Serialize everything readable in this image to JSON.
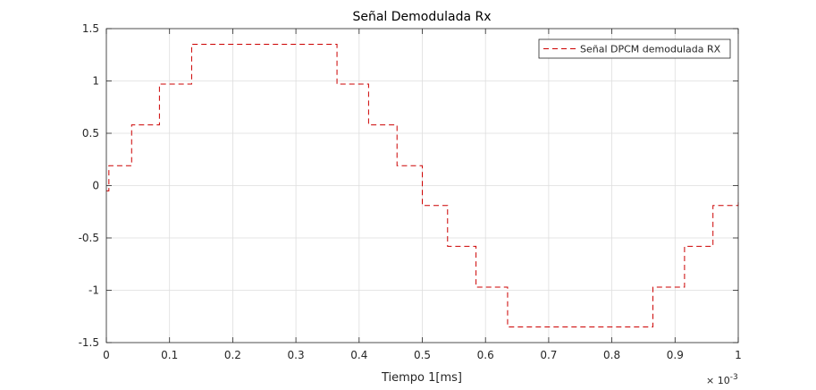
{
  "chart_data": {
    "type": "line",
    "title": "Señal Demodulada Rx",
    "xlabel": "Tiempo 1[ms]",
    "ylabel": "",
    "xlim": [
      0,
      0.001
    ],
    "ylim": [
      -1.5,
      1.5
    ],
    "x_exponent_label": "× 10",
    "x_exponent_power": "-3",
    "x_tick_labels": [
      "0",
      "0.1",
      "0.2",
      "0.3",
      "0.4",
      "0.5",
      "0.6",
      "0.7",
      "0.8",
      "0.9",
      "1"
    ],
    "y_tick_labels": [
      "1.5",
      "1",
      "0.5",
      "0",
      "-0.5",
      "-1",
      "-1.5"
    ],
    "x_ticks": [
      0,
      0.0001,
      0.0002,
      0.0003,
      0.0004,
      0.0005,
      0.0006,
      0.0007,
      0.0008,
      0.0009,
      0.001
    ],
    "y_ticks": [
      1.5,
      1,
      0.5,
      0,
      -0.5,
      -1,
      -1.5
    ],
    "grid": true,
    "legend_position": "top-right",
    "series": [
      {
        "name": "Señal DPCM demodulada RX",
        "color": "#cc0000",
        "line_style": "dashed",
        "step": "post",
        "x": [
          0,
          4e-06,
          4e-05,
          8.4e-05,
          0.000135,
          0.000365,
          0.000415,
          0.00046,
          0.0005,
          0.00054,
          0.000585,
          0.000635,
          0.000865,
          0.000915,
          0.00096,
          0.001
        ],
        "y": [
          -0.05,
          0.19,
          0.58,
          0.97,
          1.35,
          0.97,
          0.58,
          0.19,
          -0.19,
          -0.58,
          -0.97,
          -1.35,
          -0.97,
          -0.58,
          -0.19,
          -0.14
        ]
      }
    ]
  }
}
